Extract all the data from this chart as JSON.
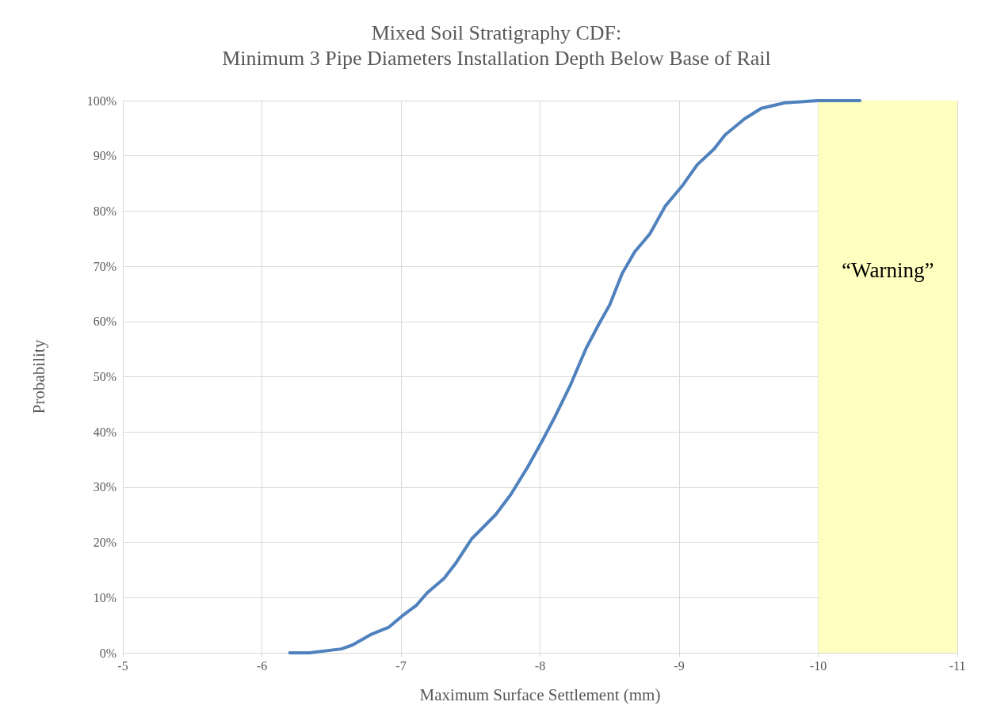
{
  "chart_data": {
    "type": "line",
    "title": "Mixed Soil Stratigraphy CDF:\nMinimum 3 Pipe Diameters Installation Depth Below Base of Rail",
    "xlabel": "Maximum Surface Settlement (mm)",
    "ylabel": "Probability",
    "series": [
      {
        "color": "#4f81bd",
        "x": [
          -6.2,
          -6.34,
          -6.57,
          -6.65,
          -6.79,
          -6.91,
          -7.02,
          -7.11,
          -7.19,
          -7.31,
          -7.39,
          -7.51,
          -7.68,
          -7.79,
          -7.91,
          -8.02,
          -8.11,
          -8.22,
          -8.33,
          -8.42,
          -8.5,
          -8.59,
          -8.68,
          -8.79,
          -8.9,
          -9.02,
          -9.13,
          -9.25,
          -9.33,
          -9.47,
          -9.59,
          -9.76,
          -10.0,
          -10.3
        ],
        "values": [
          0,
          0,
          0.7,
          1.4,
          3.4,
          4.6,
          6.9,
          8.6,
          10.9,
          13.5,
          16.1,
          20.7,
          25,
          28.7,
          33.6,
          38.6,
          42.9,
          48.6,
          55.1,
          59.4,
          63,
          68.7,
          72.6,
          75.9,
          80.9,
          84.5,
          88.4,
          91.2,
          93.8,
          96.7,
          98.6,
          99.6,
          100,
          100
        ]
      }
    ],
    "xlim": [
      -5,
      -11
    ],
    "xticks": [
      -5,
      -6,
      -7,
      -8,
      -9,
      -10,
      -11
    ],
    "ylim": [
      0,
      100
    ],
    "yticks": [
      {
        "value": 0,
        "label": "0%"
      },
      {
        "value": 10,
        "label": "10%"
      },
      {
        "value": 20,
        "label": "20%"
      },
      {
        "value": 30,
        "label": "30%"
      },
      {
        "value": 40,
        "label": "40%"
      },
      {
        "value": 50,
        "label": "50%"
      },
      {
        "value": 60,
        "label": "60%"
      },
      {
        "value": 70,
        "label": "70%"
      },
      {
        "value": 80,
        "label": "80%"
      },
      {
        "value": 90,
        "label": "90%"
      },
      {
        "value": 100,
        "label": "100%"
      }
    ],
    "bands": [
      {
        "axis": "x",
        "from": -10,
        "to": -11,
        "label": "“Warning”",
        "color": "#ffffc0"
      }
    ],
    "grid": true,
    "marker": "none",
    "line_style": "solid"
  }
}
